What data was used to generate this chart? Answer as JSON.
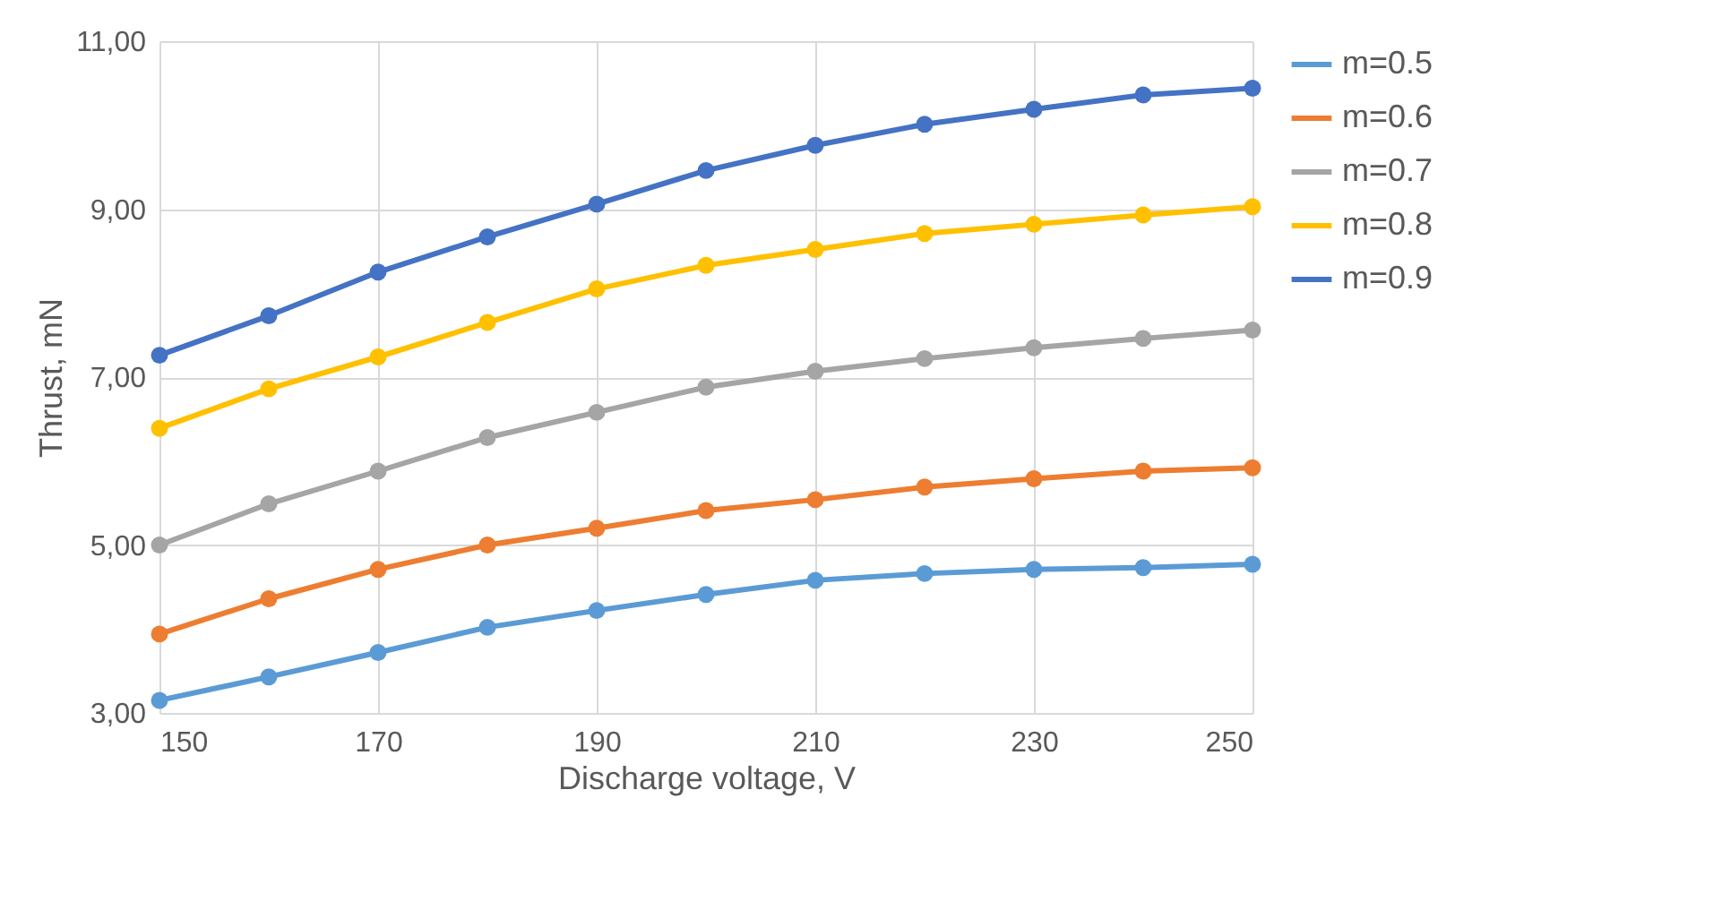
{
  "chart_data": {
    "type": "line",
    "xlabel": "Discharge voltage, V",
    "ylabel": "Thrust, mN",
    "x": [
      150,
      160,
      170,
      180,
      190,
      200,
      210,
      220,
      230,
      240,
      250
    ],
    "series": [
      {
        "name": "m=0.5",
        "color": "#5b9bd5",
        "values": [
          3.15,
          3.43,
          3.72,
          4.02,
          4.22,
          4.41,
          4.58,
          4.66,
          4.71,
          4.73,
          4.77
        ]
      },
      {
        "name": "m=0.6",
        "color": "#ed7d31",
        "values": [
          3.94,
          4.36,
          4.71,
          5.0,
          5.2,
          5.41,
          5.54,
          5.69,
          5.79,
          5.88,
          5.92
        ]
      },
      {
        "name": "m=0.7",
        "color": "#a5a5a5",
        "values": [
          5.0,
          5.49,
          5.88,
          6.28,
          6.58,
          6.88,
          7.07,
          7.22,
          7.35,
          7.46,
          7.56
        ]
      },
      {
        "name": "m=0.8",
        "color": "#ffc000",
        "values": [
          6.39,
          6.86,
          7.24,
          7.65,
          8.05,
          8.33,
          8.52,
          8.71,
          8.82,
          8.93,
          9.03
        ]
      },
      {
        "name": "m=0.9",
        "color": "#4472c4",
        "values": [
          7.26,
          7.73,
          8.25,
          8.67,
          9.06,
          9.46,
          9.76,
          10.01,
          10.19,
          10.36,
          10.44
        ]
      }
    ],
    "xlim": [
      150,
      250
    ],
    "xticks": [
      150,
      170,
      190,
      210,
      230,
      250
    ],
    "ylim": [
      3,
      11
    ],
    "yticks": [
      {
        "value": 3,
        "label": "3,00"
      },
      {
        "value": 5,
        "label": "5,00"
      },
      {
        "value": 7,
        "label": "7,00"
      },
      {
        "value": 9,
        "label": "9,00"
      },
      {
        "value": 11,
        "label": "11,00"
      }
    ],
    "grid": true,
    "legend": "right",
    "marker": "circle",
    "line_style": "solid"
  }
}
